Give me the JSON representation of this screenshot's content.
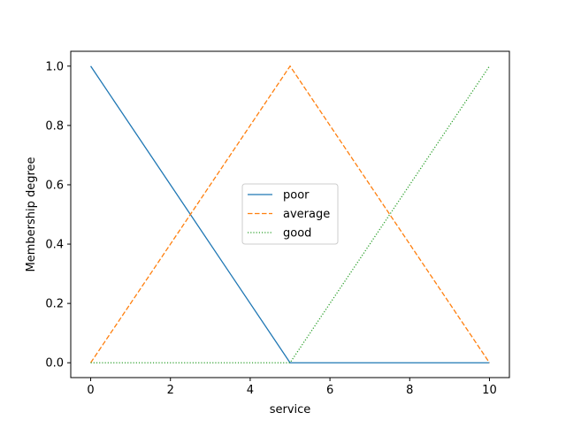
{
  "chart_data": {
    "type": "line",
    "title": "",
    "xlabel": "service",
    "ylabel": "Membership degree",
    "xlim": [
      -0.5,
      10.5
    ],
    "ylim": [
      -0.05,
      1.05
    ],
    "xticks": [
      0,
      2,
      4,
      6,
      8,
      10
    ],
    "xtick_labels": [
      "0",
      "2",
      "4",
      "6",
      "8",
      "10"
    ],
    "yticks": [
      0.0,
      0.2,
      0.4,
      0.6,
      0.8,
      1.0
    ],
    "ytick_labels": [
      "0.0",
      "0.2",
      "0.4",
      "0.6",
      "0.8",
      "1.0"
    ],
    "grid": false,
    "legend_position": "center",
    "series": [
      {
        "name": "poor",
        "color": "#1f77b4",
        "linestyle": "solid",
        "x": [
          0,
          5,
          10
        ],
        "y": [
          1.0,
          0.0,
          0.0
        ]
      },
      {
        "name": "average",
        "color": "#ff7f0e",
        "linestyle": "dashed",
        "x": [
          0,
          5,
          10
        ],
        "y": [
          0.0,
          1.0,
          0.0
        ]
      },
      {
        "name": "good",
        "color": "#2ca02c",
        "linestyle": "dotted",
        "x": [
          0,
          5,
          10
        ],
        "y": [
          0.0,
          0.0,
          1.0
        ]
      }
    ]
  }
}
